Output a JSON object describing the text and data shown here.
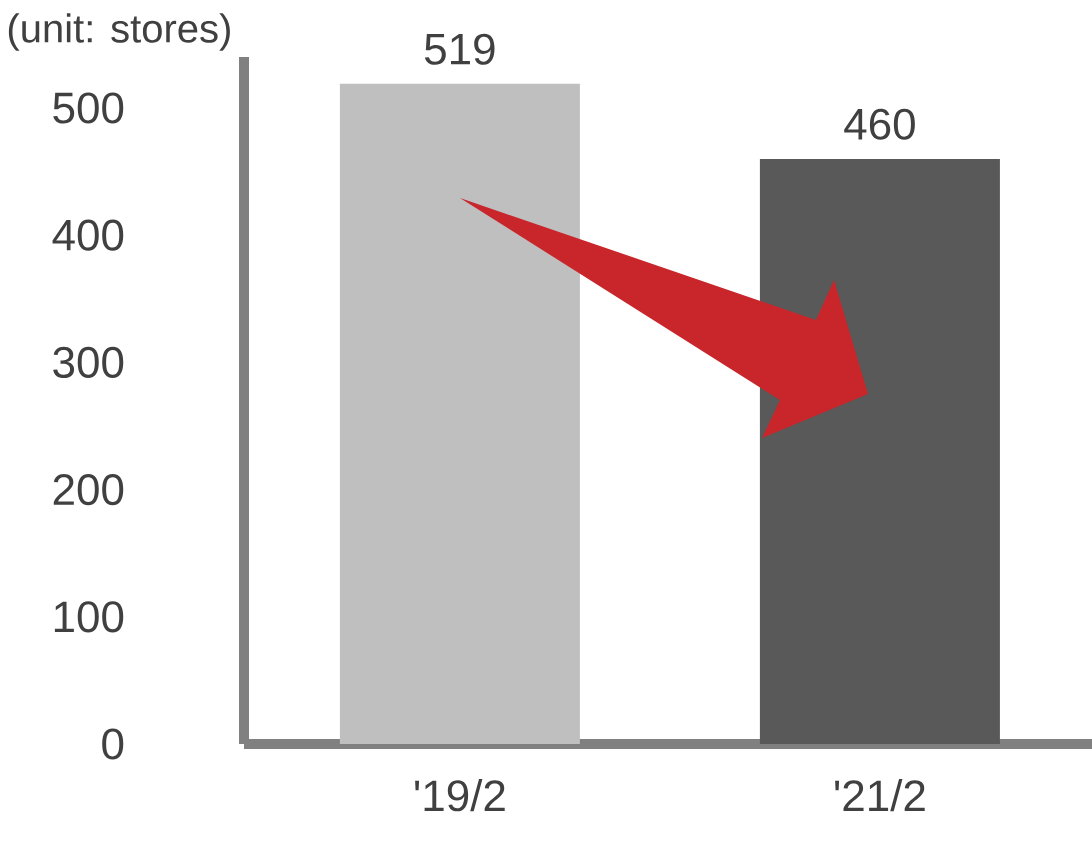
{
  "chart_data": {
    "type": "bar",
    "categories": [
      "'19/2",
      "'21/2"
    ],
    "values": [
      519,
      460
    ],
    "colors": [
      "#bfbfbf",
      "#595959"
    ],
    "ylim": [
      0,
      540
    ],
    "yticks": [
      0,
      100,
      200,
      300,
      400,
      500
    ],
    "data_labels": true,
    "annotations": [
      "(unit: stores)"
    ]
  }
}
